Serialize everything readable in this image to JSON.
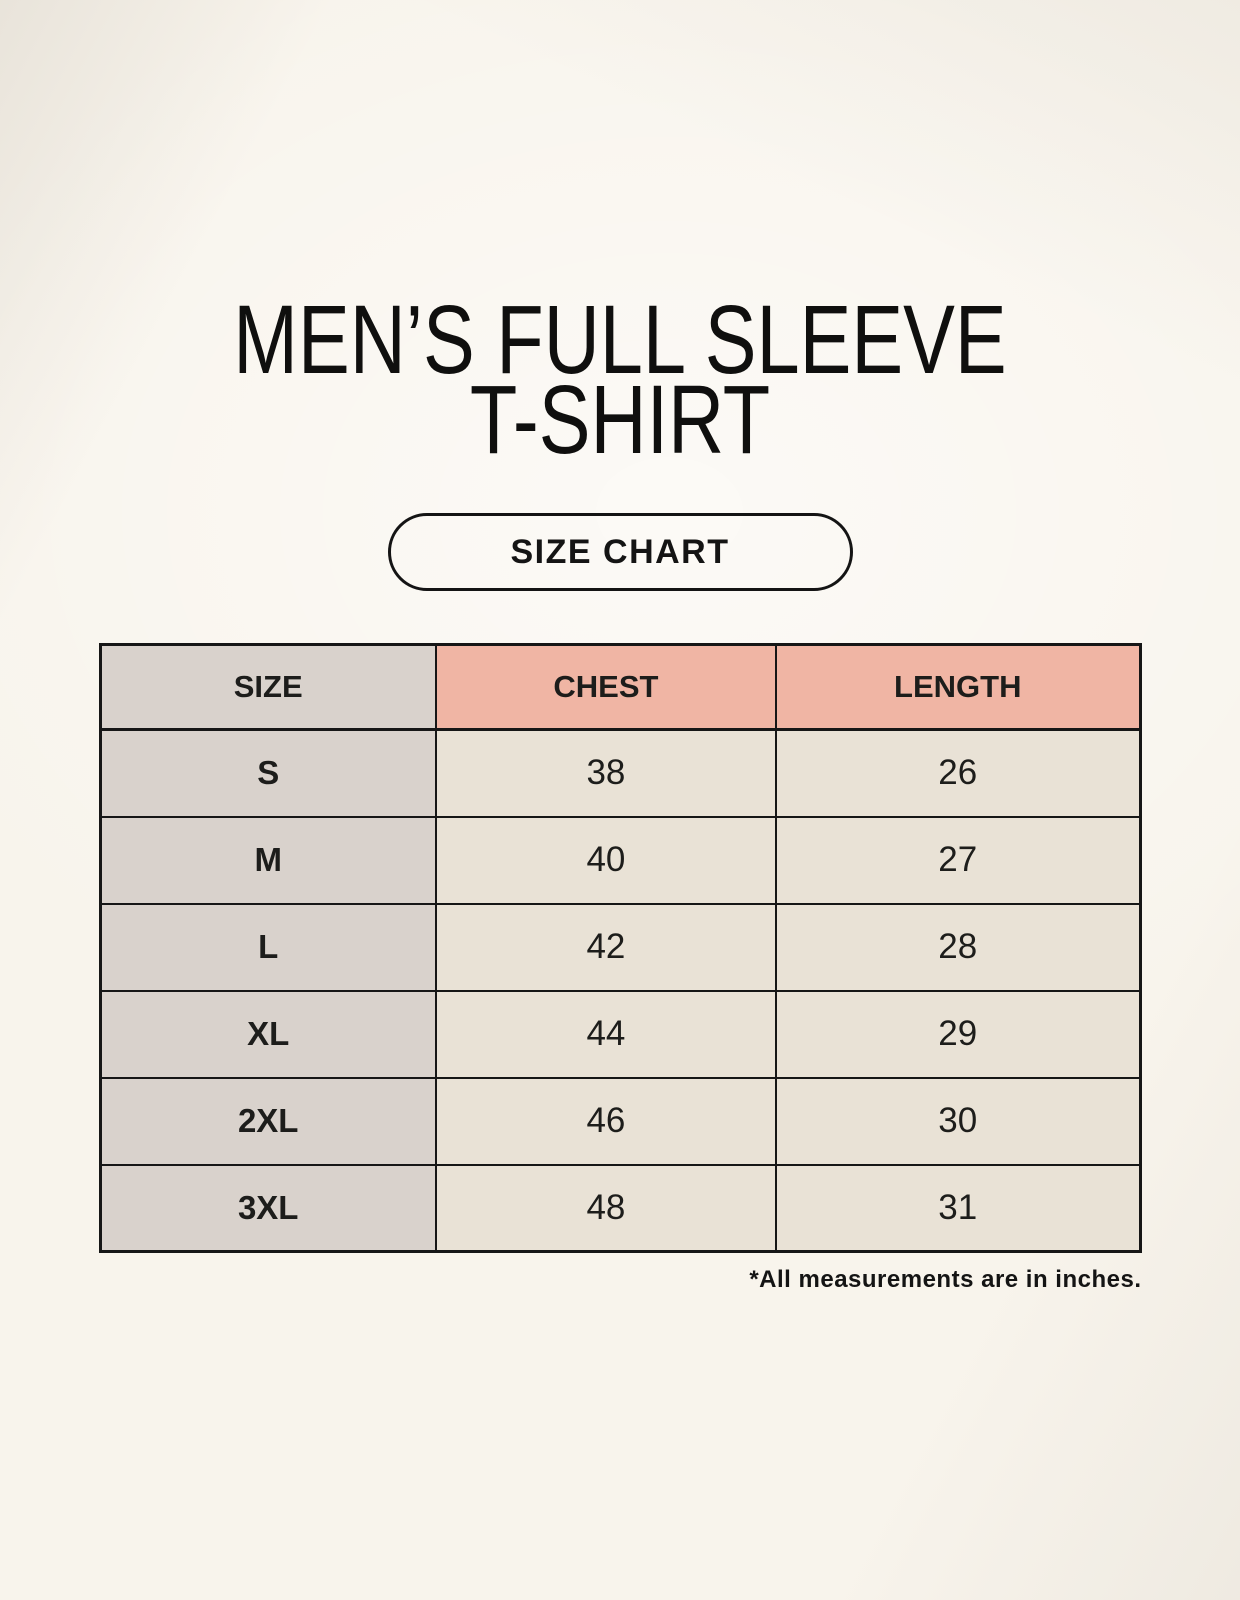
{
  "header": {
    "title_line1": "MEN’S FULL SLEEVE",
    "title_line2": "T-SHIRT",
    "size_chart_button": "SIZE CHART"
  },
  "chart_data": {
    "type": "table",
    "columns": [
      "SIZE",
      "CHEST",
      "LENGTH"
    ],
    "rows": [
      [
        "S",
        "38",
        "26"
      ],
      [
        "M",
        "40",
        "27"
      ],
      [
        "L",
        "42",
        "28"
      ],
      [
        "XL",
        "44",
        "29"
      ],
      [
        "2XL",
        "46",
        "30"
      ],
      [
        "3XL",
        "48",
        "31"
      ]
    ],
    "units_note": "*All measurements are in inches."
  },
  "colors": {
    "page_background": "#f8f4ec",
    "size_column": "#d9d2cc",
    "accent_header": "#f0b5a4",
    "data_cell": "#e9e2d6",
    "border": "#161616",
    "text": "#1d1d1b"
  }
}
